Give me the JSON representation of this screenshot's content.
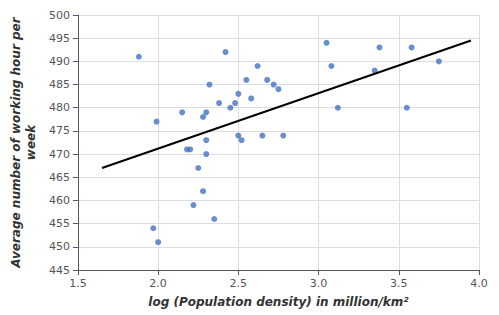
{
  "chart_data": {
    "type": "scatter",
    "xlabel": "log (Population density) in million/km²",
    "ylabel": "Average number of working hour per\nweek",
    "series": [
      {
        "type": "scatter",
        "color": "#4472C4",
        "marker": "circle",
        "x": [
          1.88,
          1.97,
          1.99,
          2.0,
          2.15,
          2.18,
          2.2,
          2.22,
          2.25,
          2.28,
          2.28,
          2.3,
          2.3,
          2.3,
          2.32,
          2.35,
          2.38,
          2.42,
          2.45,
          2.48,
          2.5,
          2.5,
          2.52,
          2.55,
          2.58,
          2.62,
          2.65,
          2.68,
          2.72,
          2.75,
          2.78,
          3.05,
          3.08,
          3.12,
          3.35,
          3.38,
          3.55,
          3.58,
          3.75
        ],
        "values": [
          491,
          454,
          477,
          451,
          479,
          471,
          471,
          459,
          467,
          462,
          478,
          479,
          473,
          470,
          485,
          456,
          481,
          492,
          480,
          481,
          474,
          483,
          473,
          486,
          482,
          489,
          474,
          486,
          485,
          484,
          474,
          494,
          489,
          480,
          488,
          493,
          480,
          493,
          490
        ]
      },
      {
        "type": "line",
        "color": "#000000",
        "line_style": "solid",
        "x": [
          1.65,
          3.95
        ],
        "values": [
          467.0,
          494.5
        ]
      }
    ],
    "xlim": [
      1.5,
      4.0
    ],
    "ylim": [
      445,
      500
    ],
    "xticks": [
      1.5,
      {
        "value": 2.0,
        "label": "2.0"
      },
      2.5,
      {
        "value": 3.0,
        "label": "3.0"
      },
      3.5,
      {
        "value": 4.0,
        "label": "4.0"
      }
    ],
    "yticks": [
      445,
      450,
      455,
      460,
      465,
      470,
      475,
      480,
      485,
      490,
      495,
      500
    ],
    "grid": true
  }
}
